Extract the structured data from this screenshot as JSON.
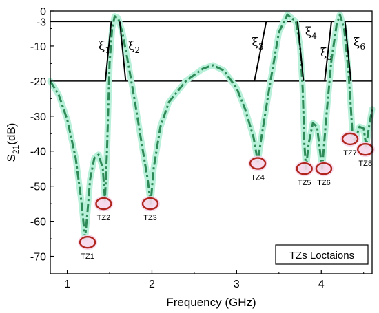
{
  "chart_data": {
    "type": "line",
    "xlabel": "Frequency (GHz)",
    "ylabel": "S21(dB)",
    "xlim": [
      0.8,
      4.6
    ],
    "ylim": [
      -75,
      0
    ],
    "x_ticks": [
      1,
      2,
      3,
      4
    ],
    "y_ticks": [
      0,
      -3,
      -10,
      -20,
      -30,
      -40,
      -50,
      -60,
      -70
    ],
    "horizontal_lines": [
      -3,
      -20
    ],
    "legend_box": {
      "text": "TZs Loctaions",
      "placement": "bottom-right"
    },
    "series": [
      {
        "color": "#2e8b57",
        "halo": "#b9f0da",
        "style": "dash-dot",
        "points": [
          [
            0.8,
            -20
          ],
          [
            0.9,
            -24
          ],
          [
            1.0,
            -31
          ],
          [
            1.1,
            -42
          ],
          [
            1.17,
            -55
          ],
          [
            1.21,
            -65
          ],
          [
            1.24,
            -57
          ],
          [
            1.27,
            -48
          ],
          [
            1.32,
            -42
          ],
          [
            1.37,
            -41
          ],
          [
            1.42,
            -45
          ],
          [
            1.445,
            -54
          ],
          [
            1.47,
            -40
          ],
          [
            1.5,
            -15
          ],
          [
            1.53,
            -5
          ],
          [
            1.56,
            -1.5
          ],
          [
            1.6,
            -2
          ],
          [
            1.65,
            -6
          ],
          [
            1.72,
            -15
          ],
          [
            1.8,
            -26
          ],
          [
            1.88,
            -38
          ],
          [
            1.95,
            -48
          ],
          [
            1.985,
            -55
          ],
          [
            2.02,
            -45
          ],
          [
            2.1,
            -33
          ],
          [
            2.2,
            -26
          ],
          [
            2.4,
            -20
          ],
          [
            2.6,
            -16.5
          ],
          [
            2.72,
            -15.5
          ],
          [
            2.85,
            -17
          ],
          [
            3.0,
            -22
          ],
          [
            3.1,
            -28
          ],
          [
            3.2,
            -36
          ],
          [
            3.25,
            -43
          ],
          [
            3.3,
            -35
          ],
          [
            3.4,
            -20
          ],
          [
            3.5,
            -6
          ],
          [
            3.6,
            -1
          ],
          [
            3.7,
            -3
          ],
          [
            3.75,
            -10
          ],
          [
            3.78,
            -22
          ],
          [
            3.8,
            -38
          ],
          [
            3.82,
            -45
          ],
          [
            3.85,
            -38
          ],
          [
            3.9,
            -32
          ],
          [
            3.95,
            -33
          ],
          [
            4.01,
            -45
          ],
          [
            4.06,
            -30
          ],
          [
            4.12,
            -14
          ],
          [
            4.18,
            -4
          ],
          [
            4.22,
            -1
          ],
          [
            4.27,
            -5
          ],
          [
            4.32,
            -17
          ],
          [
            4.35,
            -28
          ],
          [
            4.37,
            -36
          ],
          [
            4.4,
            -37
          ],
          [
            4.45,
            -33
          ],
          [
            4.5,
            -33.5
          ],
          [
            4.53,
            -38.5
          ],
          [
            4.57,
            -32
          ],
          [
            4.6,
            -28
          ]
        ]
      }
    ],
    "transmission_zeros": [
      {
        "label": "TZ1",
        "x": 1.24,
        "y": -66
      },
      {
        "label": "TZ2",
        "x": 1.43,
        "y": -55
      },
      {
        "label": "TZ3",
        "x": 1.98,
        "y": -55
      },
      {
        "label": "TZ4",
        "x": 3.25,
        "y": -43.5
      },
      {
        "label": "TZ5",
        "x": 3.8,
        "y": -45
      },
      {
        "label": "TZ6",
        "x": 4.03,
        "y": -45
      },
      {
        "label": "TZ7",
        "x": 4.34,
        "y": -36.5
      },
      {
        "label": "TZ8",
        "x": 4.52,
        "y": -39.5
      }
    ],
    "xi_annotations": [
      {
        "symbol": "ξ",
        "sub": "1",
        "line": [
          [
            1.45,
            -20
          ],
          [
            1.52,
            -3
          ]
        ],
        "label_at": [
          1.37,
          -11
        ]
      },
      {
        "symbol": "ξ",
        "sub": "2",
        "line": [
          [
            1.62,
            -3
          ],
          [
            1.69,
            -20
          ]
        ],
        "label_at": [
          1.72,
          -11
        ]
      },
      {
        "symbol": "ξ",
        "sub": "3",
        "line": [
          [
            3.21,
            -20
          ],
          [
            3.35,
            -3
          ]
        ],
        "label_at": [
          3.18,
          -10
        ]
      },
      {
        "symbol": "ξ",
        "sub": "4",
        "line": [
          [
            3.72,
            -3
          ],
          [
            3.79,
            -20
          ]
        ],
        "label_at": [
          3.81,
          -7
        ]
      },
      {
        "symbol": "ξ",
        "sub": "5",
        "line": [
          [
            4.04,
            -20
          ],
          [
            4.12,
            -3
          ]
        ],
        "label_at": [
          3.99,
          -13
        ]
      },
      {
        "symbol": "ξ",
        "sub": "6",
        "line": [
          [
            4.28,
            -3
          ],
          [
            4.35,
            -20
          ]
        ],
        "label_at": [
          4.38,
          -10
        ]
      }
    ]
  }
}
